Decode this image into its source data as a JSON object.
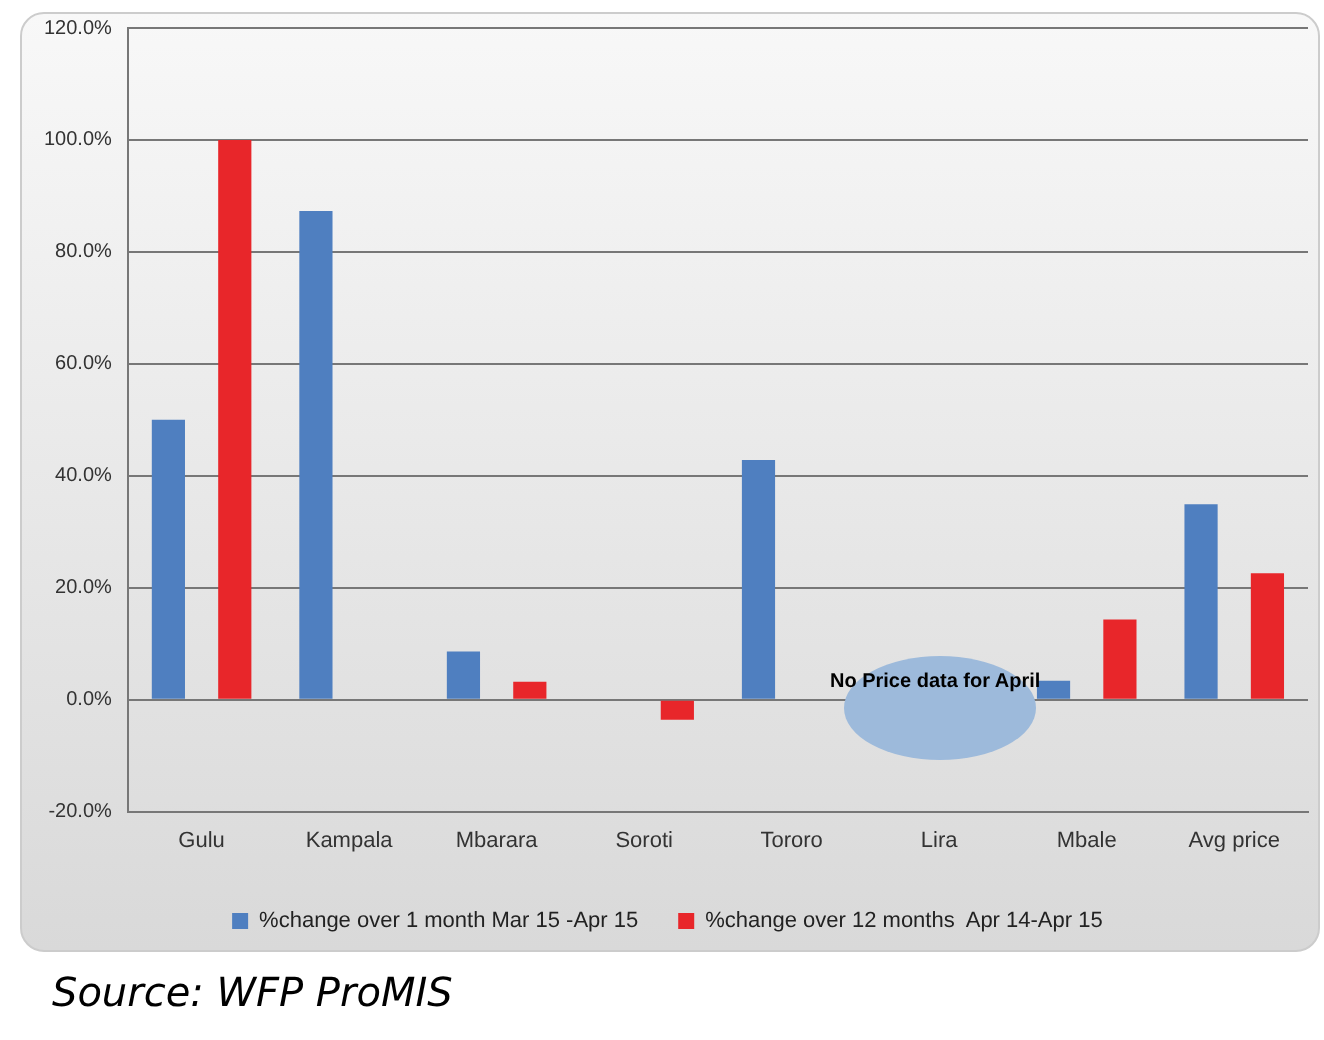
{
  "chart_data": {
    "type": "bar",
    "categories": [
      "Gulu",
      "Kampala",
      "Mbarara",
      "Soroti",
      "Tororo",
      "Lira",
      "Mbale",
      "Avg price"
    ],
    "series": [
      {
        "name": "%change over 1 month Mar 15 -Apr 15",
        "color": "#4f7fc0",
        "values": [
          50,
          87.3,
          8.6,
          null,
          42.8,
          null,
          3.4,
          34.9
        ]
      },
      {
        "name": "%change over 12 months  Apr 14-Apr 15",
        "color": "#e8262a",
        "values": [
          100,
          null,
          3.2,
          -3.6,
          null,
          null,
          14.3,
          22.6
        ]
      }
    ],
    "ylim": [
      -20,
      120
    ],
    "yticks": [
      {
        "value": -20,
        "label": "-20.0%"
      },
      {
        "value": 0,
        "label": "0.0%"
      },
      {
        "value": 20,
        "label": "20.0%"
      },
      {
        "value": 40,
        "label": "40.0%"
      },
      {
        "value": 60,
        "label": "60.0%"
      },
      {
        "value": 80,
        "label": "80.0%"
      },
      {
        "value": 100,
        "label": "100.0%"
      },
      {
        "value": 120,
        "label": "120.0%"
      }
    ],
    "grid": "y",
    "legend": "bottom",
    "annotations": [
      "No Price data for April",
      "Source: WFP ProMIS"
    ]
  }
}
